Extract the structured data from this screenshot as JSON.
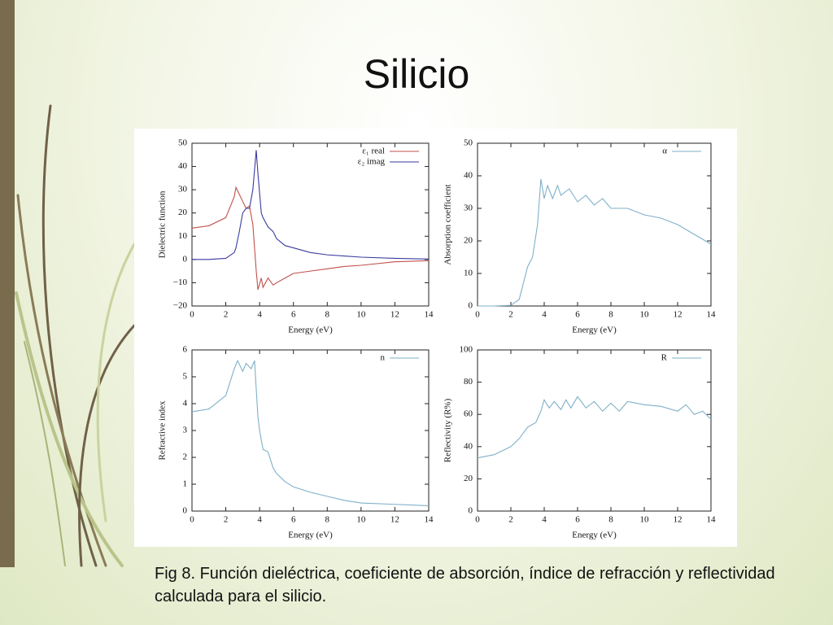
{
  "title": "Silicio",
  "caption": "Fig 8. Función dieléctrica, coeficiente de absorción, índice de refracción y reflectividad calculada para el silicio.",
  "chart_data": [
    {
      "type": "line",
      "xlabel": "Energy (eV)",
      "ylabel": "Dielectric function",
      "x": [
        0,
        1,
        2,
        2.5,
        2.6,
        2.8,
        3,
        3.2,
        3.4,
        3.6,
        3.8,
        3.9,
        4.1,
        4.2,
        4.5,
        4.8,
        5,
        5.5,
        6,
        7,
        8,
        9,
        10,
        12,
        14
      ],
      "series": [
        {
          "name": "ε₁ real",
          "color": "#c0504d",
          "values": [
            13.5,
            14.5,
            18,
            27,
            31,
            28,
            25,
            22,
            23,
            15,
            -5,
            -13,
            -8,
            -12,
            -8,
            -11,
            -10,
            -8,
            -6,
            -5,
            -4,
            -3,
            -2.5,
            -1,
            -0.5
          ]
        },
        {
          "name": "ε₂ imag",
          "color": "#3a3aa0",
          "values": [
            0,
            0,
            0.5,
            3,
            5,
            12,
            20,
            22,
            22,
            30,
            47,
            37,
            20,
            18,
            14,
            12,
            9,
            6,
            5,
            3,
            2,
            1.5,
            1,
            0.5,
            0.2
          ]
        }
      ],
      "xlim": [
        0,
        14
      ],
      "xticks": [
        0,
        2,
        4,
        6,
        8,
        10,
        12,
        14
      ],
      "ylim": [
        -20,
        50
      ],
      "yticks": [
        {
          "value": -20,
          "label": "−20"
        },
        {
          "value": -10,
          "label": "−10"
        },
        0,
        10,
        20,
        30,
        40,
        50
      ],
      "legend": "upper right"
    },
    {
      "type": "line",
      "xlabel": "Energy (eV)",
      "ylabel": "Absorption coefficient",
      "x": [
        0,
        1,
        2,
        2.5,
        2.8,
        3,
        3.3,
        3.6,
        3.8,
        4,
        4.2,
        4.5,
        4.8,
        5,
        5.5,
        6,
        6.5,
        7,
        7.5,
        8,
        9,
        10,
        11,
        12,
        13,
        14
      ],
      "series": [
        {
          "name": "α",
          "color": "#7fb0c8",
          "values": [
            0,
            0,
            0.2,
            2,
            8,
            12,
            15,
            25,
            39,
            33,
            37,
            33,
            37,
            34,
            36,
            32,
            34,
            31,
            33,
            30,
            30,
            28,
            27,
            25,
            22,
            19
          ]
        }
      ],
      "xlim": [
        0,
        14
      ],
      "xticks": [
        0,
        2,
        4,
        6,
        8,
        10,
        12,
        14
      ],
      "ylim": [
        0,
        50
      ],
      "yticks": [
        0,
        10,
        20,
        30,
        40,
        50
      ],
      "legend": "upper right"
    },
    {
      "type": "line",
      "xlabel": "Energy (eV)",
      "ylabel": "Refractive index",
      "x": [
        0,
        1,
        2,
        2.5,
        2.7,
        3,
        3.2,
        3.5,
        3.7,
        3.9,
        4,
        4.2,
        4.5,
        4.8,
        5,
        5.5,
        6,
        7,
        8,
        9,
        10,
        12,
        14
      ],
      "series": [
        {
          "name": "n",
          "color": "#7fb0c8",
          "values": [
            3.7,
            3.8,
            4.3,
            5.3,
            5.6,
            5.2,
            5.5,
            5.3,
            5.6,
            3.5,
            3.0,
            2.3,
            2.2,
            1.6,
            1.4,
            1.1,
            0.9,
            0.7,
            0.55,
            0.4,
            0.3,
            0.25,
            0.2
          ]
        }
      ],
      "xlim": [
        0,
        14
      ],
      "xticks": [
        0,
        2,
        4,
        6,
        8,
        10,
        12,
        14
      ],
      "ylim": [
        0,
        6
      ],
      "yticks": [
        0,
        1,
        2,
        3,
        4,
        5,
        6
      ],
      "legend": "upper right"
    },
    {
      "type": "line",
      "xlabel": "Energy (eV)",
      "ylabel": "Reflectivity (R%)",
      "x": [
        0,
        1,
        2,
        2.5,
        3,
        3.5,
        3.8,
        4,
        4.3,
        4.6,
        5,
        5.3,
        5.6,
        6,
        6.5,
        7,
        7.5,
        8,
        8.5,
        9,
        10,
        11,
        12,
        12.5,
        13,
        13.5,
        14
      ],
      "series": [
        {
          "name": "R",
          "color": "#7fb0c8",
          "values": [
            33,
            35,
            40,
            45,
            52,
            55,
            62,
            69,
            64,
            68,
            63,
            69,
            64,
            71,
            64,
            68,
            62,
            67,
            62,
            68,
            66,
            65,
            62,
            66,
            60,
            62,
            57
          ]
        }
      ],
      "xlim": [
        0,
        14
      ],
      "xticks": [
        0,
        2,
        4,
        6,
        8,
        10,
        12,
        14
      ],
      "ylim": [
        0,
        100
      ],
      "yticks": [
        0,
        20,
        40,
        60,
        80,
        100
      ],
      "legend": "upper right"
    }
  ]
}
